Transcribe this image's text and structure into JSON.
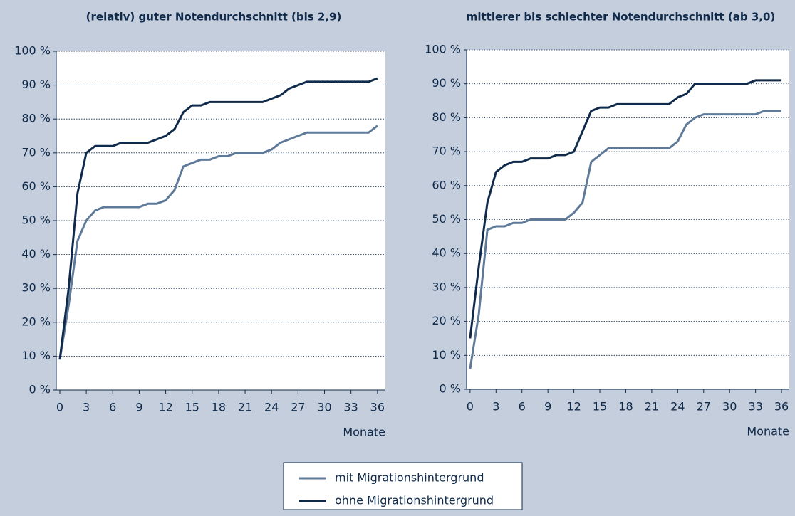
{
  "chart_data": [
    {
      "type": "line",
      "title": "(relativ) guter Notendurchschnitt (bis 2,9)",
      "xlabel": "Monate",
      "x": [
        0,
        1,
        2,
        3,
        4,
        5,
        6,
        7,
        8,
        9,
        10,
        11,
        12,
        13,
        14,
        15,
        16,
        17,
        18,
        19,
        20,
        21,
        22,
        23,
        24,
        25,
        26,
        27,
        28,
        29,
        30,
        31,
        32,
        33,
        34,
        35,
        36
      ],
      "series": [
        {
          "name": "mit Migrationshintergrund",
          "color": "#5f7a99",
          "values": [
            9,
            25,
            44,
            50,
            53,
            54,
            54,
            54,
            54,
            54,
            55,
            55,
            56,
            59,
            66,
            67,
            68,
            68,
            69,
            69,
            70,
            70,
            70,
            70,
            71,
            73,
            74,
            75,
            76,
            76,
            76,
            76,
            76,
            76,
            76,
            76,
            78
          ]
        },
        {
          "name": "ohne Migrationshintergrund",
          "color": "#0f2a4a",
          "values": [
            9,
            30,
            58,
            70,
            72,
            72,
            72,
            73,
            73,
            73,
            73,
            74,
            75,
            77,
            82,
            84,
            84,
            85,
            85,
            85,
            85,
            85,
            85,
            85,
            86,
            87,
            89,
            90,
            91,
            91,
            91,
            91,
            91,
            91,
            91,
            91,
            92
          ]
        }
      ],
      "xlim": [
        -0.4,
        36.9
      ],
      "xticks": [
        0,
        3,
        6,
        9,
        12,
        15,
        18,
        21,
        24,
        27,
        30,
        33,
        36
      ],
      "ylim": [
        0,
        100
      ],
      "yticks": [
        {
          "value": 0,
          "label": "0 %"
        },
        {
          "value": 10,
          "label": "10 %"
        },
        {
          "value": 20,
          "label": "20 %"
        },
        {
          "value": 30,
          "label": "30 %"
        },
        {
          "value": 40,
          "label": "40 %"
        },
        {
          "value": 50,
          "label": "50 %"
        },
        {
          "value": 60,
          "label": "60 %"
        },
        {
          "value": 70,
          "label": "70 %"
        },
        {
          "value": 80,
          "label": "80 %"
        },
        {
          "value": 90,
          "label": "90 %"
        },
        {
          "value": 100,
          "label": "100 %"
        }
      ],
      "grid": true
    },
    {
      "type": "line",
      "title": "mittlerer bis schlechter Notendurchschnitt (ab 3,0)",
      "xlabel": "Monate",
      "x": [
        0,
        1,
        2,
        3,
        4,
        5,
        6,
        7,
        8,
        9,
        10,
        11,
        12,
        13,
        14,
        15,
        16,
        17,
        18,
        19,
        20,
        21,
        22,
        23,
        24,
        25,
        26,
        27,
        28,
        29,
        30,
        31,
        32,
        33,
        34,
        35,
        36
      ],
      "series": [
        {
          "name": "mit Migrationshintergrund",
          "color": "#5f7a99",
          "values": [
            6,
            22,
            47,
            48,
            48,
            49,
            49,
            50,
            50,
            50,
            50,
            50,
            52,
            55,
            67,
            69,
            71,
            71,
            71,
            71,
            71,
            71,
            71,
            71,
            73,
            78,
            80,
            81,
            81,
            81,
            81,
            81,
            81,
            81,
            82,
            82,
            82
          ]
        },
        {
          "name": "ohne Migrationshintergrund",
          "color": "#0f2a4a",
          "values": [
            15,
            36,
            55,
            64,
            66,
            67,
            67,
            68,
            68,
            68,
            69,
            69,
            70,
            76,
            82,
            83,
            83,
            84,
            84,
            84,
            84,
            84,
            84,
            84,
            86,
            87,
            90,
            90,
            90,
            90,
            90,
            90,
            90,
            91,
            91,
            91,
            91
          ]
        }
      ],
      "xlim": [
        -0.4,
        36.9
      ],
      "xticks": [
        0,
        3,
        6,
        9,
        12,
        15,
        18,
        21,
        24,
        27,
        30,
        33,
        36
      ],
      "ylim": [
        0,
        100
      ],
      "yticks": [
        {
          "value": 0,
          "label": "0 %"
        },
        {
          "value": 10,
          "label": "10 %"
        },
        {
          "value": 20,
          "label": "20 %"
        },
        {
          "value": 30,
          "label": "30 %"
        },
        {
          "value": 40,
          "label": "40 %"
        },
        {
          "value": 50,
          "label": "50 %"
        },
        {
          "value": 60,
          "label": "60 %"
        },
        {
          "value": 70,
          "label": "70 %"
        },
        {
          "value": 80,
          "label": "80 %"
        },
        {
          "value": 90,
          "label": "90 %"
        },
        {
          "value": 100,
          "label": "100 %"
        }
      ],
      "grid": true
    }
  ]
}
